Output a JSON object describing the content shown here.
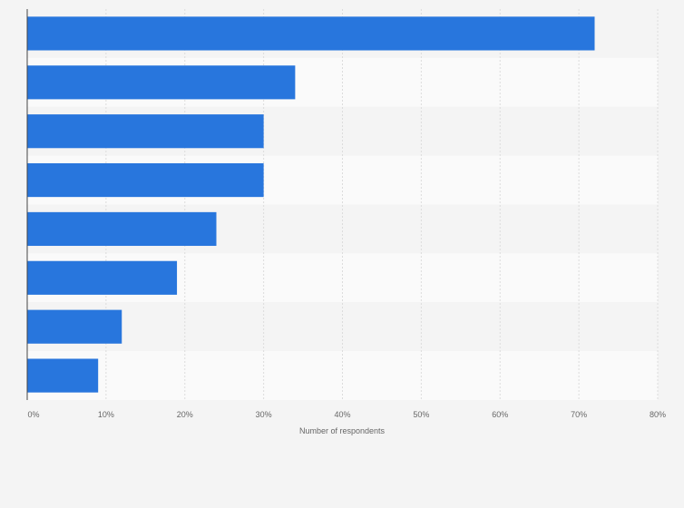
{
  "chart_data": {
    "type": "bar",
    "orientation": "horizontal",
    "title": "",
    "categories": [
      "",
      "",
      "",
      "",
      "",
      "",
      "",
      ""
    ],
    "values": [
      72,
      34,
      30,
      30,
      24,
      19,
      12,
      9
    ],
    "xlabel": "Number of respondents",
    "ylabel": "",
    "xlim": [
      0,
      80
    ],
    "x_ticks": [
      "0%",
      "10%",
      "20%",
      "30%",
      "40%",
      "50%",
      "60%",
      "70%",
      "80%"
    ],
    "grid": true,
    "bar_color": "#2876dd"
  }
}
